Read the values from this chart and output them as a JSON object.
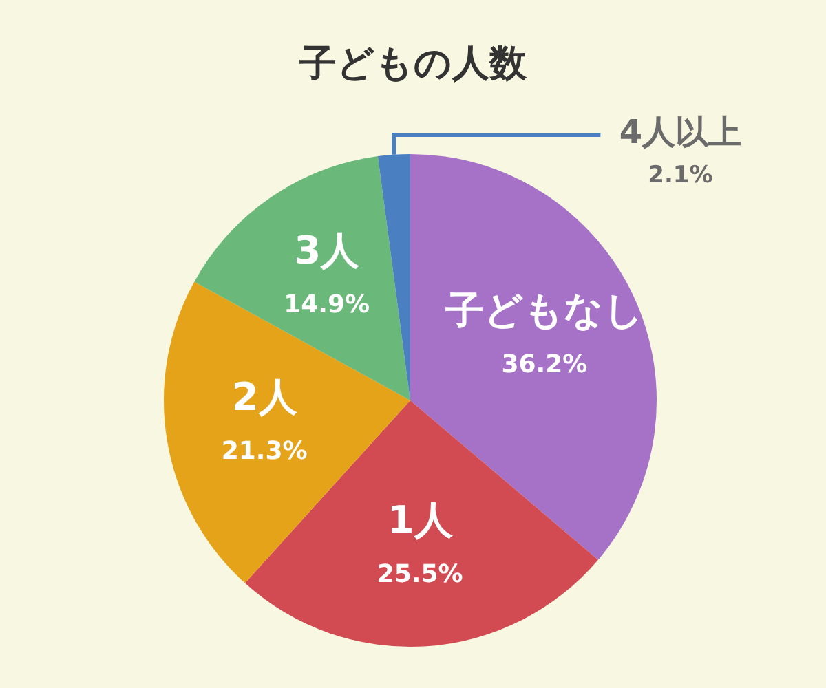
{
  "chart_data": {
    "type": "pie",
    "title": "子どもの人数",
    "categories": [
      "子どもなし",
      "1人",
      "2人",
      "3人",
      "4人以上"
    ],
    "values": [
      36.2,
      25.5,
      21.3,
      14.9,
      2.1
    ],
    "value_labels": [
      "36.2%",
      "25.5%",
      "21.3%",
      "14.9%",
      "2.1%"
    ],
    "colors": [
      "#a672c8",
      "#d24b53",
      "#e5a31a",
      "#6ab87a",
      "#4a7fc1"
    ],
    "legend": false
  }
}
